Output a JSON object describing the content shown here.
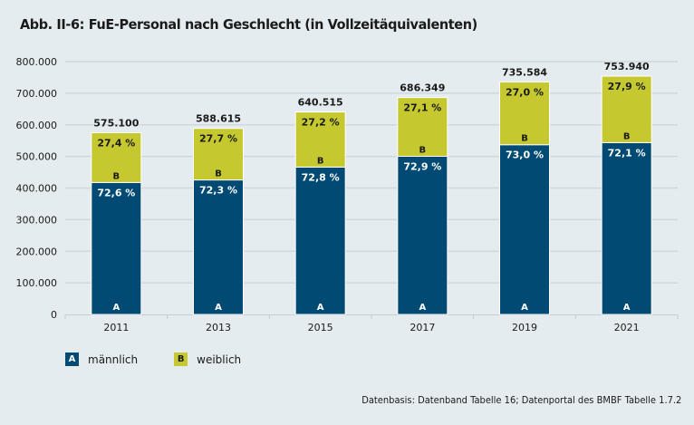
{
  "title": "Abb. II-6: FuE-Personal nach Geschlecht (in Vollzeitäquivalenten)",
  "source": "Datenbasis: Datenband Tabelle 16; Datenportal des BMBF Tabelle 1.7.2",
  "colors": {
    "background": "#e4ecef",
    "maennlich": "#004a74",
    "weiblich": "#c5c92f",
    "grid": "#cfd8dc"
  },
  "legend": [
    {
      "key": "A",
      "label": "männlich",
      "color": "#004a74",
      "text_color": "#ffffff"
    },
    {
      "key": "B",
      "label": "weiblich",
      "color": "#c5c92f",
      "text_color": "#1a1a1a"
    }
  ],
  "chart_data": {
    "type": "bar",
    "stacked": true,
    "title": "Abb. II-6: FuE-Personal nach Geschlecht (in Vollzeitäquivalenten)",
    "xlabel": "",
    "ylabel": "",
    "categories": [
      "2011",
      "2013",
      "2015",
      "2017",
      "2019",
      "2021"
    ],
    "totals": [
      575100,
      588615,
      640515,
      686349,
      735584,
      753940
    ],
    "total_labels": [
      "575.100",
      "588.615",
      "640.515",
      "686.349",
      "735.584",
      "753.940"
    ],
    "series": [
      {
        "name": "männlich",
        "marker": "A",
        "share_percent": [
          72.6,
          72.3,
          72.8,
          72.9,
          73.0,
          72.1
        ],
        "share_labels": [
          "72,6 %",
          "72,3 %",
          "72,8 %",
          "72,9 %",
          "73,0 %",
          "72,1 %"
        ]
      },
      {
        "name": "weiblich",
        "marker": "B",
        "share_percent": [
          27.4,
          27.7,
          27.2,
          27.1,
          27.0,
          27.9
        ],
        "share_labels": [
          "27,4 %",
          "27,7 %",
          "27,2 %",
          "27,1 %",
          "27,0 %",
          "27,9 %"
        ]
      }
    ],
    "ylim": [
      0,
      800000
    ],
    "yticks": [
      0,
      100000,
      200000,
      300000,
      400000,
      500000,
      600000,
      700000,
      800000
    ],
    "ytick_labels": [
      "0",
      "100.000",
      "200.000",
      "300.000",
      "400.000",
      "500.000",
      "600.000",
      "700.000",
      "800.000"
    ],
    "grid": true,
    "legend_position": "bottom-left",
    "source": "Datenbasis: Datenband Tabelle 16; Datenportal des BMBF Tabelle 1.7.2"
  }
}
